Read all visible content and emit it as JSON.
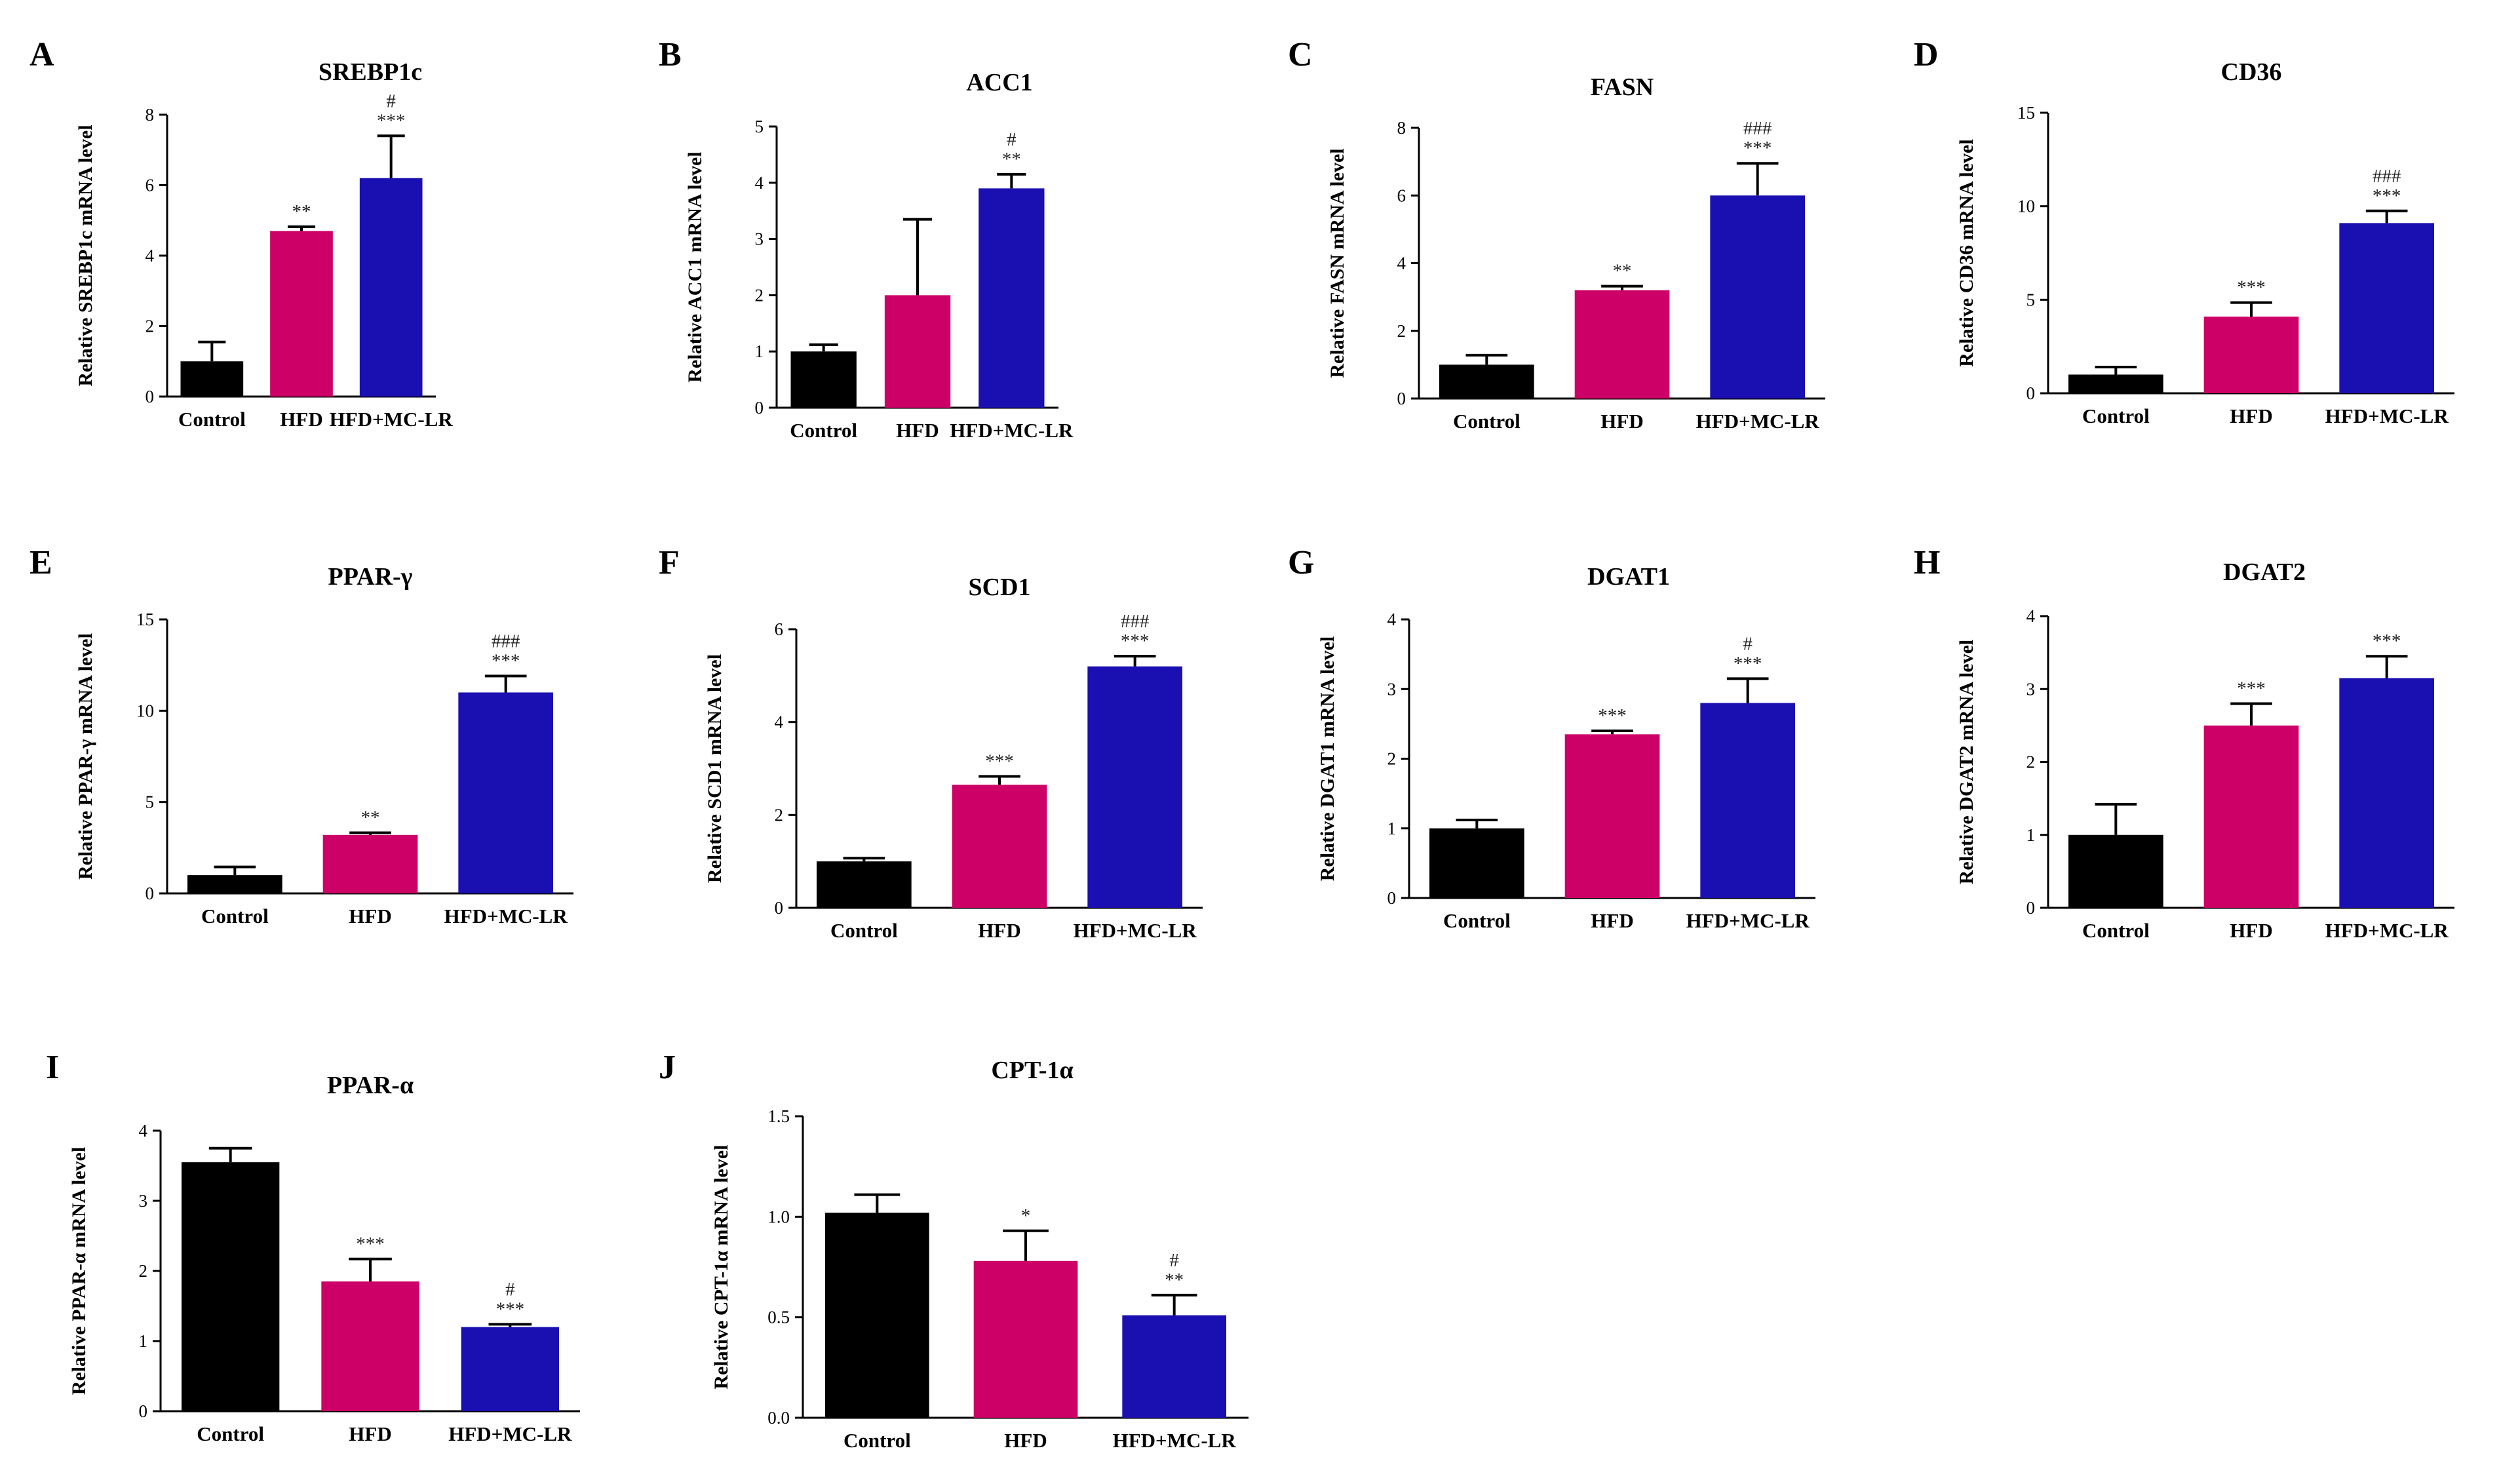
{
  "colors": {
    "Control": "#000000",
    "HFD": "#cc0066",
    "HFD+MC-LR": "#1a0fb0",
    "axis": "#000000"
  },
  "chart_data": [
    {
      "panel": "A",
      "type": "bar",
      "title": "SREBP1c",
      "ylabel": "Relative  SREBP1c mRNA level",
      "categories": [
        "Control",
        "HFD",
        "HFD+MC-LR"
      ],
      "values": [
        1.0,
        4.7,
        6.2
      ],
      "errors": [
        0.55,
        0.12,
        1.2
      ],
      "ylim": [
        0,
        8
      ],
      "yticks": [
        "0",
        "2",
        "4",
        "6",
        "8"
      ],
      "significance": [
        "",
        "**",
        "***"
      ],
      "hash": [
        "",
        "",
        "#"
      ]
    },
    {
      "panel": "B",
      "type": "bar",
      "title": "ACC1",
      "ylabel": "Relative ACC1 mRNA level",
      "categories": [
        "Control",
        "HFD",
        "HFD+MC-LR"
      ],
      "values": [
        1.0,
        2.0,
        3.9
      ],
      "errors": [
        0.12,
        1.35,
        0.25
      ],
      "ylim": [
        0,
        5
      ],
      "yticks": [
        "0",
        "1",
        "2",
        "3",
        "4",
        "5"
      ],
      "significance": [
        "",
        "",
        "**"
      ],
      "hash": [
        "",
        "",
        "#"
      ]
    },
    {
      "panel": "C",
      "type": "bar",
      "title": "FASN",
      "ylabel": "Relative FASN  mRNA level",
      "categories": [
        "Control",
        "HFD",
        "HFD+MC-LR"
      ],
      "values": [
        1.0,
        3.2,
        6.0
      ],
      "errors": [
        0.28,
        0.12,
        0.95
      ],
      "ylim": [
        0,
        8
      ],
      "yticks": [
        "0",
        "2",
        "4",
        "6",
        "8"
      ],
      "significance": [
        "",
        "**",
        "***"
      ],
      "hash": [
        "",
        "",
        "###"
      ]
    },
    {
      "panel": "D",
      "type": "bar",
      "title": "CD36",
      "ylabel": "Relative CD36 mRNA level",
      "categories": [
        "Control",
        "HFD",
        "HFD+MC-LR"
      ],
      "values": [
        1.0,
        4.1,
        9.1
      ],
      "errors": [
        0.4,
        0.75,
        0.65
      ],
      "ylim": [
        0,
        15
      ],
      "yticks": [
        "0",
        "5",
        "10",
        "15"
      ],
      "significance": [
        "",
        "***",
        "***"
      ],
      "hash": [
        "",
        "",
        "###"
      ]
    },
    {
      "panel": "E",
      "type": "bar",
      "title": "PPAR-γ",
      "ylabel": "Relative  PPAR-γ mRNA level",
      "categories": [
        "Control",
        "HFD",
        "HFD+MC-LR"
      ],
      "values": [
        1.0,
        3.2,
        11.0
      ],
      "errors": [
        0.45,
        0.12,
        0.9
      ],
      "ylim": [
        0,
        15
      ],
      "yticks": [
        "0",
        "5",
        "10",
        "15"
      ],
      "significance": [
        "",
        "**",
        "***"
      ],
      "hash": [
        "",
        "",
        "###"
      ]
    },
    {
      "panel": "F",
      "type": "bar",
      "title": "SCD1",
      "ylabel": "Relative  SCD1 mRNA level",
      "categories": [
        "Control",
        "HFD",
        "HFD+MC-LR"
      ],
      "values": [
        1.0,
        2.65,
        5.2
      ],
      "errors": [
        0.07,
        0.18,
        0.22
      ],
      "ylim": [
        0,
        6
      ],
      "yticks": [
        "0",
        "2",
        "4",
        "6"
      ],
      "significance": [
        "",
        "***",
        "***"
      ],
      "hash": [
        "",
        "",
        "###"
      ]
    },
    {
      "panel": "G",
      "type": "bar",
      "title": "DGAT1",
      "ylabel": "Relative DGAT1 mRNA level",
      "categories": [
        "Control",
        "HFD",
        "HFD+MC-LR"
      ],
      "values": [
        1.0,
        2.35,
        2.8
      ],
      "errors": [
        0.12,
        0.05,
        0.35
      ],
      "ylim": [
        0,
        4
      ],
      "yticks": [
        "0",
        "1",
        "2",
        "3",
        "4"
      ],
      "significance": [
        "",
        "***",
        "***"
      ],
      "hash": [
        "",
        "",
        "#"
      ]
    },
    {
      "panel": "H",
      "type": "bar",
      "title": "DGAT2",
      "ylabel": "Relative DGAT2  mRNA level",
      "categories": [
        "Control",
        "HFD",
        "HFD+MC-LR"
      ],
      "values": [
        1.0,
        2.5,
        3.15
      ],
      "errors": [
        0.42,
        0.3,
        0.3
      ],
      "ylim": [
        0,
        4
      ],
      "yticks": [
        "0",
        "1",
        "2",
        "3",
        "4"
      ],
      "significance": [
        "",
        "***",
        "***"
      ],
      "hash": [
        "",
        "",
        ""
      ]
    },
    {
      "panel": "I",
      "type": "bar",
      "title": "PPAR-α",
      "ylabel": "Relative PPAR-α mRNA level",
      "categories": [
        "Control",
        "HFD",
        "HFD+MC-LR"
      ],
      "values": [
        3.55,
        1.85,
        1.2
      ],
      "errors": [
        0.2,
        0.32,
        0.04
      ],
      "ylim": [
        0,
        4
      ],
      "yticks": [
        "0",
        "1",
        "2",
        "3",
        "4"
      ],
      "significance": [
        "",
        "***",
        "***"
      ],
      "hash": [
        "",
        "",
        "#"
      ]
    },
    {
      "panel": "J",
      "type": "bar",
      "title": "CPT-1α",
      "ylabel": "Relative CPT-1α mRNA level",
      "categories": [
        "Control",
        "HFD",
        "HFD+MC-LR"
      ],
      "values": [
        1.02,
        0.78,
        0.51
      ],
      "errors": [
        0.09,
        0.15,
        0.1
      ],
      "ylim": [
        0,
        1.5
      ],
      "yticks": [
        "0.0",
        "0.5",
        "1.0",
        "1.5"
      ],
      "significance": [
        "",
        "*",
        "**"
      ],
      "hash": [
        "",
        "",
        "#"
      ]
    }
  ]
}
